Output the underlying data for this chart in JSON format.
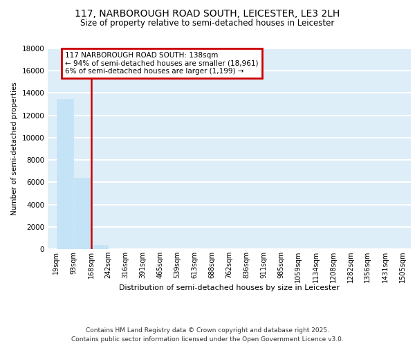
{
  "title": "117, NARBOROUGH ROAD SOUTH, LEICESTER, LE3 2LH",
  "subtitle": "Size of property relative to semi-detached houses in Leicester",
  "xlabel": "Distribution of semi-detached houses by size in Leicester",
  "ylabel": "Number of semi-detached properties",
  "annotation_line1": "117 NARBOROUGH ROAD SOUTH: 138sqm",
  "annotation_line2": "← 94% of semi-detached houses are smaller (18,961)",
  "annotation_line3": "6% of semi-detached houses are larger (1,199) →",
  "property_size_sqm": 138,
  "bin_edges": [
    19,
    93,
    168,
    242,
    316,
    391,
    465,
    539,
    613,
    688,
    762,
    836,
    911,
    985,
    1059,
    1134,
    1208,
    1282,
    1356,
    1431,
    1505
  ],
  "bar_heights": [
    13500,
    6400,
    400,
    0,
    0,
    0,
    0,
    0,
    0,
    0,
    0,
    0,
    0,
    0,
    0,
    0,
    0,
    0,
    0,
    0
  ],
  "bar_color": "#c5e3f7",
  "red_line_color": "#cc0000",
  "annotation_box_color": "#cc0000",
  "background_color": "#ddeef8",
  "grid_color": "#ffffff",
  "ylim": [
    0,
    18000
  ],
  "yticks": [
    0,
    2000,
    4000,
    6000,
    8000,
    10000,
    12000,
    14000,
    16000,
    18000
  ],
  "footer_line1": "Contains HM Land Registry data © Crown copyright and database right 2025.",
  "footer_line2": "Contains public sector information licensed under the Open Government Licence v3.0."
}
